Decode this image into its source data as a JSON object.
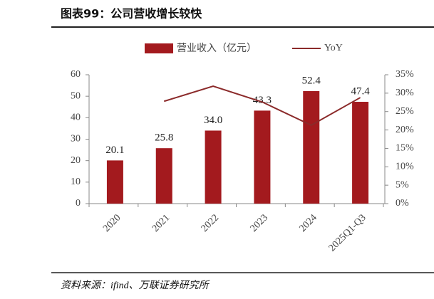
{
  "chart_data": {
    "type": "bar",
    "title": "图表99：公司营收增长较快",
    "source": "资料来源：ifind、万联证券研究所",
    "categories": [
      "2020",
      "2021",
      "2022",
      "2023",
      "2024",
      "2025Q1-Q3"
    ],
    "series": [
      {
        "name": "营业收入（亿元）",
        "type": "bar",
        "color": "#a31a1e",
        "values": [
          20.1,
          25.8,
          34.0,
          43.3,
          52.4,
          47.4
        ],
        "value_labels": [
          "20.1",
          "25.8",
          "34.0",
          "43.3",
          "52.4",
          "47.4"
        ]
      },
      {
        "name": "YoY",
        "type": "line",
        "axis": "y2",
        "color": "#8b2a2a",
        "values": [
          null,
          27.8,
          31.9,
          27.6,
          21.3,
          28.8
        ]
      }
    ],
    "ylim": [
      0,
      60
    ],
    "yticks": [
      0,
      10,
      20,
      30,
      40,
      50,
      60
    ],
    "y2lim": [
      0,
      35
    ],
    "y2ticks": [
      {
        "value": 0,
        "label": "0%"
      },
      {
        "value": 5,
        "label": "5%"
      },
      {
        "value": 10,
        "label": "10%"
      },
      {
        "value": 15,
        "label": "15%"
      },
      {
        "value": 20,
        "label": "20%"
      },
      {
        "value": 25,
        "label": "25%"
      },
      {
        "value": 30,
        "label": "30%"
      },
      {
        "value": 35,
        "label": "35%"
      }
    ]
  }
}
